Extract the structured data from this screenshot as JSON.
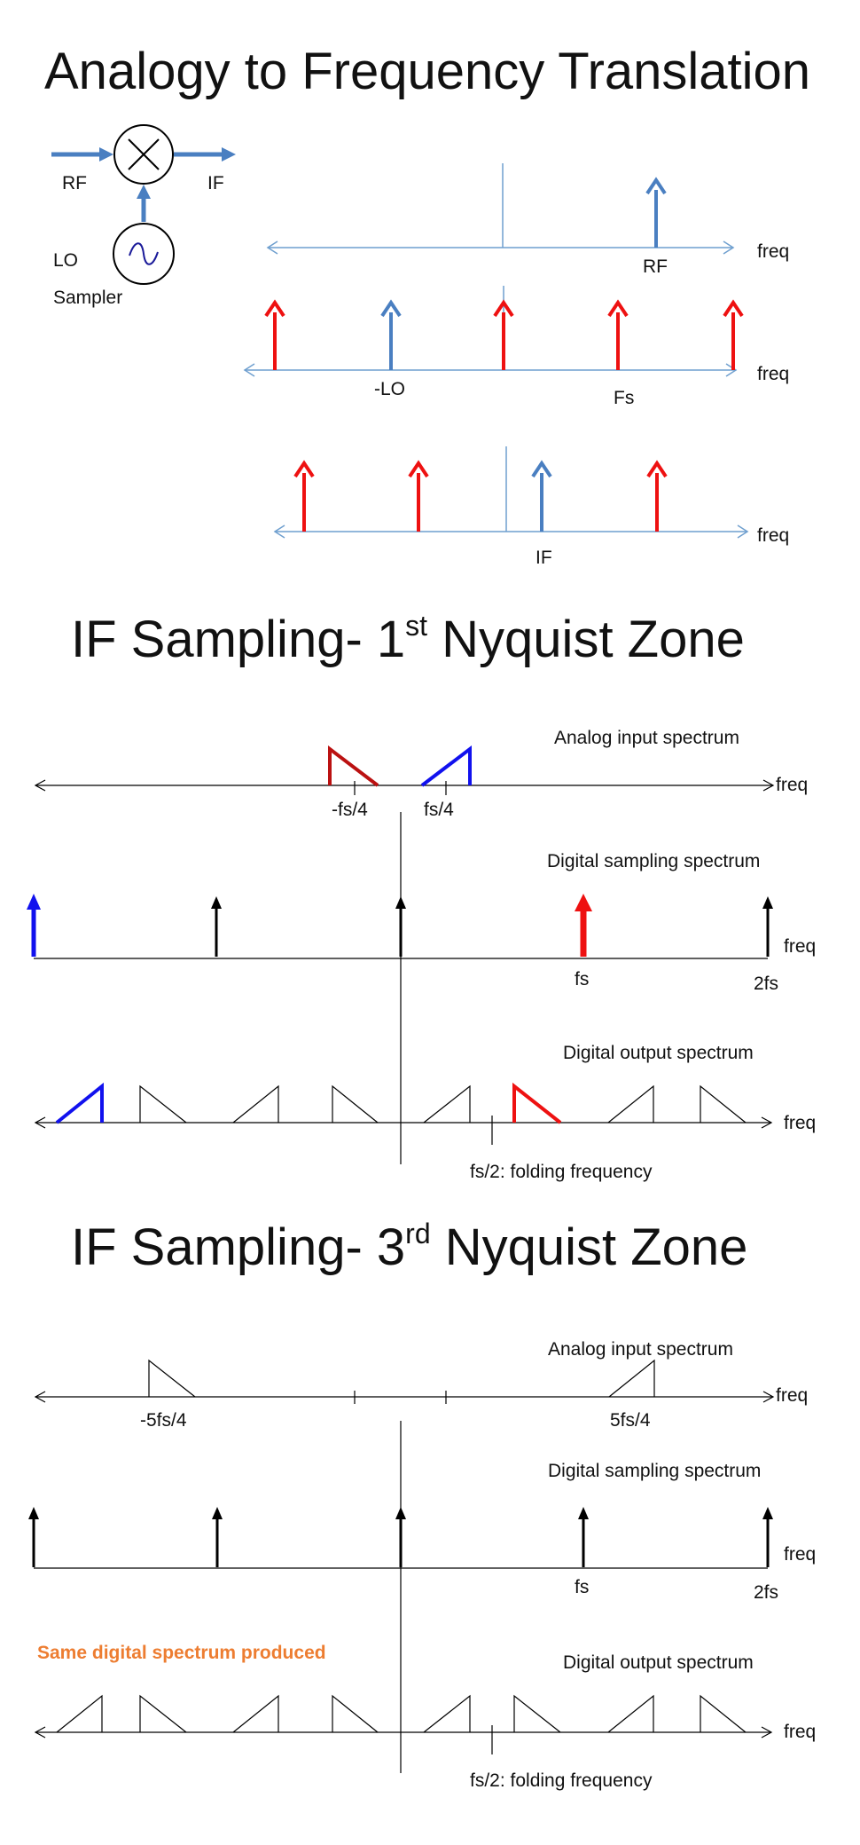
{
  "colors": {
    "blue": "#4a7fc1",
    "light_blue": "#6f9fcf",
    "red": "#ee1111",
    "dark_red": "#bb1111",
    "pure_blue": "#1111ee",
    "black": "#000000",
    "orange": "#ed7d31"
  },
  "section1": {
    "title": "Analogy to Frequency Translation",
    "mixer": {
      "rf": "RF",
      "if": "IF",
      "lo": "LO",
      "sampler": "Sampler"
    },
    "row1": {
      "freq": "freq",
      "rf": "RF"
    },
    "row2": {
      "freq": "freq",
      "lo": "-LO",
      "fs": "Fs"
    },
    "row3": {
      "freq": "freq",
      "if": "IF"
    }
  },
  "section2": {
    "title_main": "IF Sampling- 1",
    "title_sup": "st",
    "title_tail": " Nyquist Zone",
    "analog": {
      "caption": "Analog input spectrum",
      "freq": "freq",
      "neg": "-fs/4",
      "pos": "fs/4"
    },
    "sampling": {
      "caption": "Digital sampling spectrum",
      "freq": "freq",
      "fs": "fs",
      "fs2": "2fs"
    },
    "output": {
      "caption": "Digital output spectrum",
      "freq": "freq",
      "fold": "fs/2: folding frequency"
    }
  },
  "section3": {
    "title_main": "IF Sampling- 3",
    "title_sup": "rd",
    "title_tail": " Nyquist Zone",
    "analog": {
      "caption": "Analog input spectrum",
      "freq": "freq",
      "neg": "-5fs/4",
      "pos": "5fs/4"
    },
    "sampling": {
      "caption": "Digital sampling spectrum",
      "freq": "freq",
      "fs": "fs",
      "fs2": "2fs"
    },
    "note": "Same digital spectrum produced",
    "output": {
      "caption": "Digital output spectrum",
      "freq": "freq",
      "fold": "fs/2: folding frequency"
    }
  }
}
